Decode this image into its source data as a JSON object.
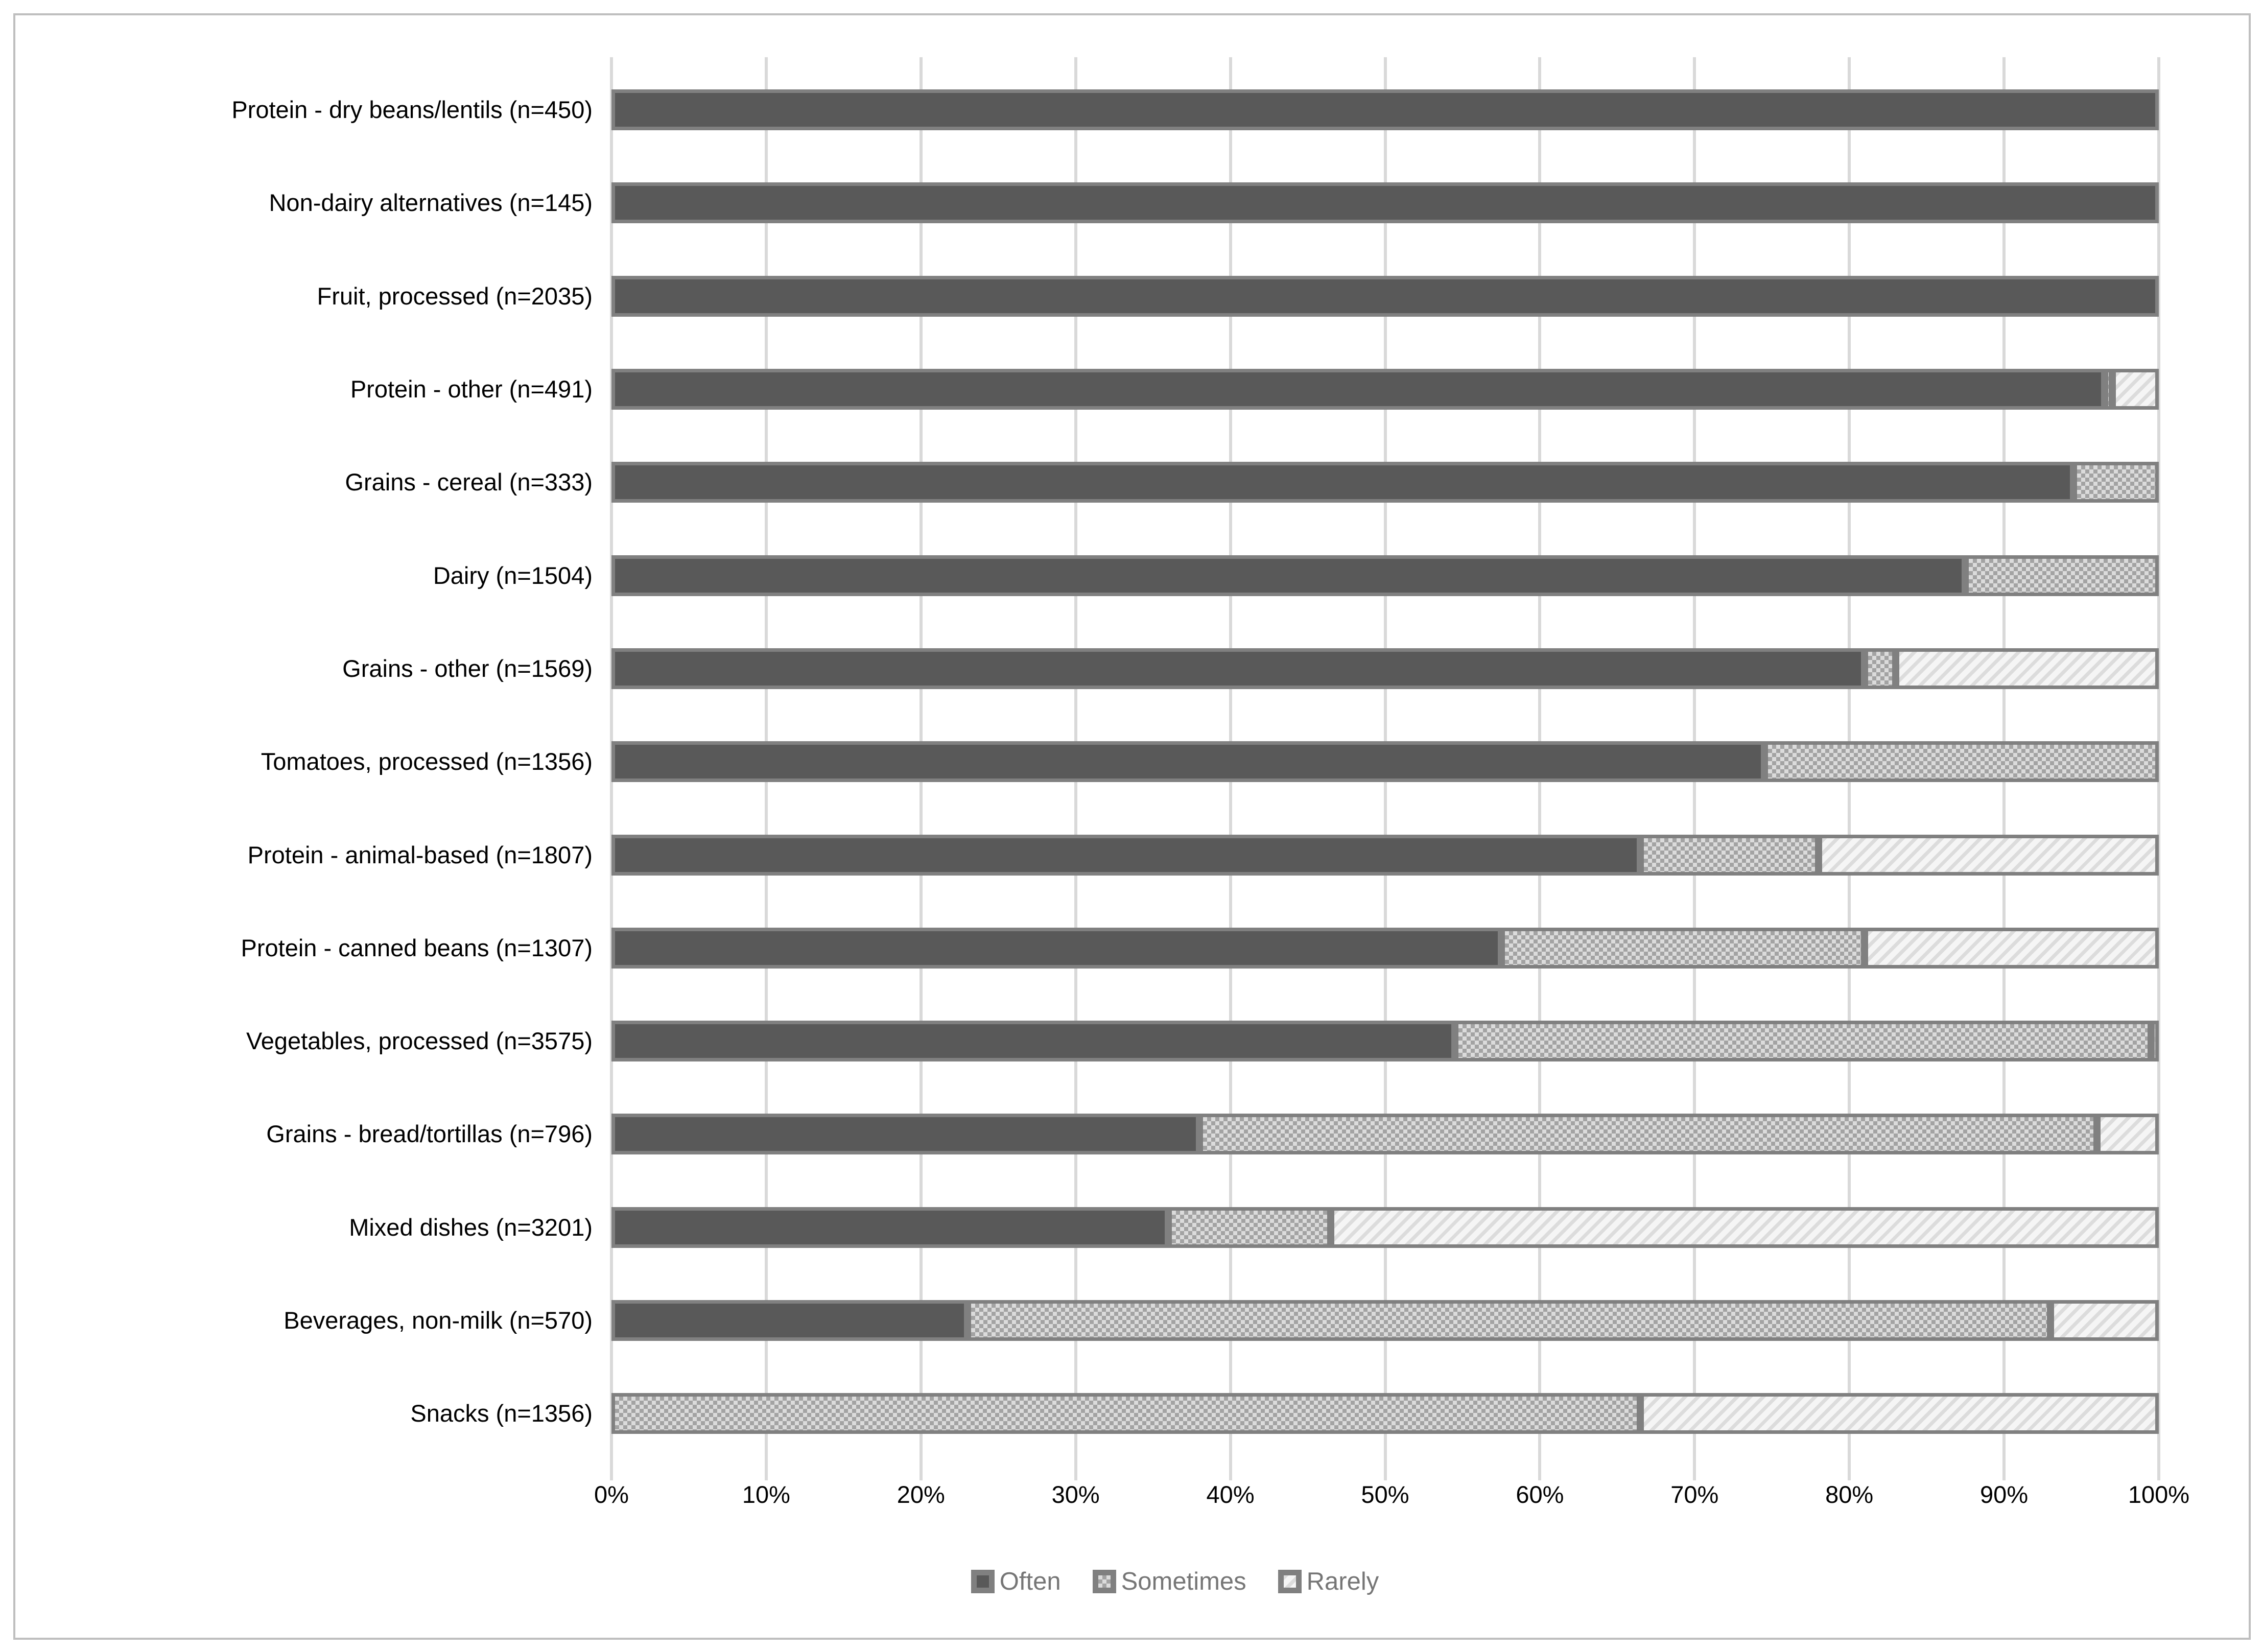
{
  "chart_data": {
    "type": "bar",
    "stacked": true,
    "orientation": "horizontal",
    "title": "",
    "xlabel": "",
    "ylabel": "",
    "xlim": [
      0,
      100
    ],
    "grid": true,
    "legend_position": "bottom",
    "x_ticks": [
      "0%",
      "10%",
      "20%",
      "30%",
      "40%",
      "50%",
      "60%",
      "70%",
      "80%",
      "90%",
      "100%"
    ],
    "categories": [
      "Protein - dry beans/lentils (n=450)",
      "Non-dairy alternatives (n=145)",
      "Fruit, processed (n=2035)",
      "Protein - other (n=491)",
      "Grains - cereal (n=333)",
      "Dairy (n=1504)",
      "Grains - other (n=1569)",
      "Tomatoes, processed (n=1356)",
      "Protein - animal-based (n=1807)",
      "Protein - canned beans (n=1307)",
      "Vegetables, processed (n=3575)",
      "Grains - bread/tortillas (n=796)",
      "Mixed dishes (n=3201)",
      "Beverages, non-milk (n=570)",
      "Snacks (n=1356)"
    ],
    "series": [
      {
        "name": "Often",
        "values": [
          100,
          100,
          100,
          96.5,
          94.5,
          87.5,
          81,
          74.5,
          66.5,
          57.5,
          54.5,
          38,
          36,
          23,
          0
        ]
      },
      {
        "name": "Sometimes",
        "values": [
          0,
          0,
          0,
          0.5,
          5.5,
          12.5,
          2,
          25.5,
          11.5,
          23.5,
          45,
          58,
          10.5,
          70,
          66.5
        ]
      },
      {
        "name": "Rarely",
        "values": [
          0,
          0,
          0,
          3,
          0,
          0,
          17,
          0,
          22,
          19,
          0.5,
          4,
          53.5,
          7,
          33.5
        ]
      }
    ]
  },
  "colors": {
    "often_fill": "#595959",
    "sometimes_check": "#a3a3a3",
    "sometimes_base": "#dbdbdb",
    "rarely_stripe": "#dcdcdc",
    "rarely_base": "#f5f5f5",
    "segment_border": "#808080",
    "gridline": "#d9d9d9",
    "figure_border": "#bfbfbf",
    "axis_text": "#000000",
    "legend_text": "#767676"
  }
}
